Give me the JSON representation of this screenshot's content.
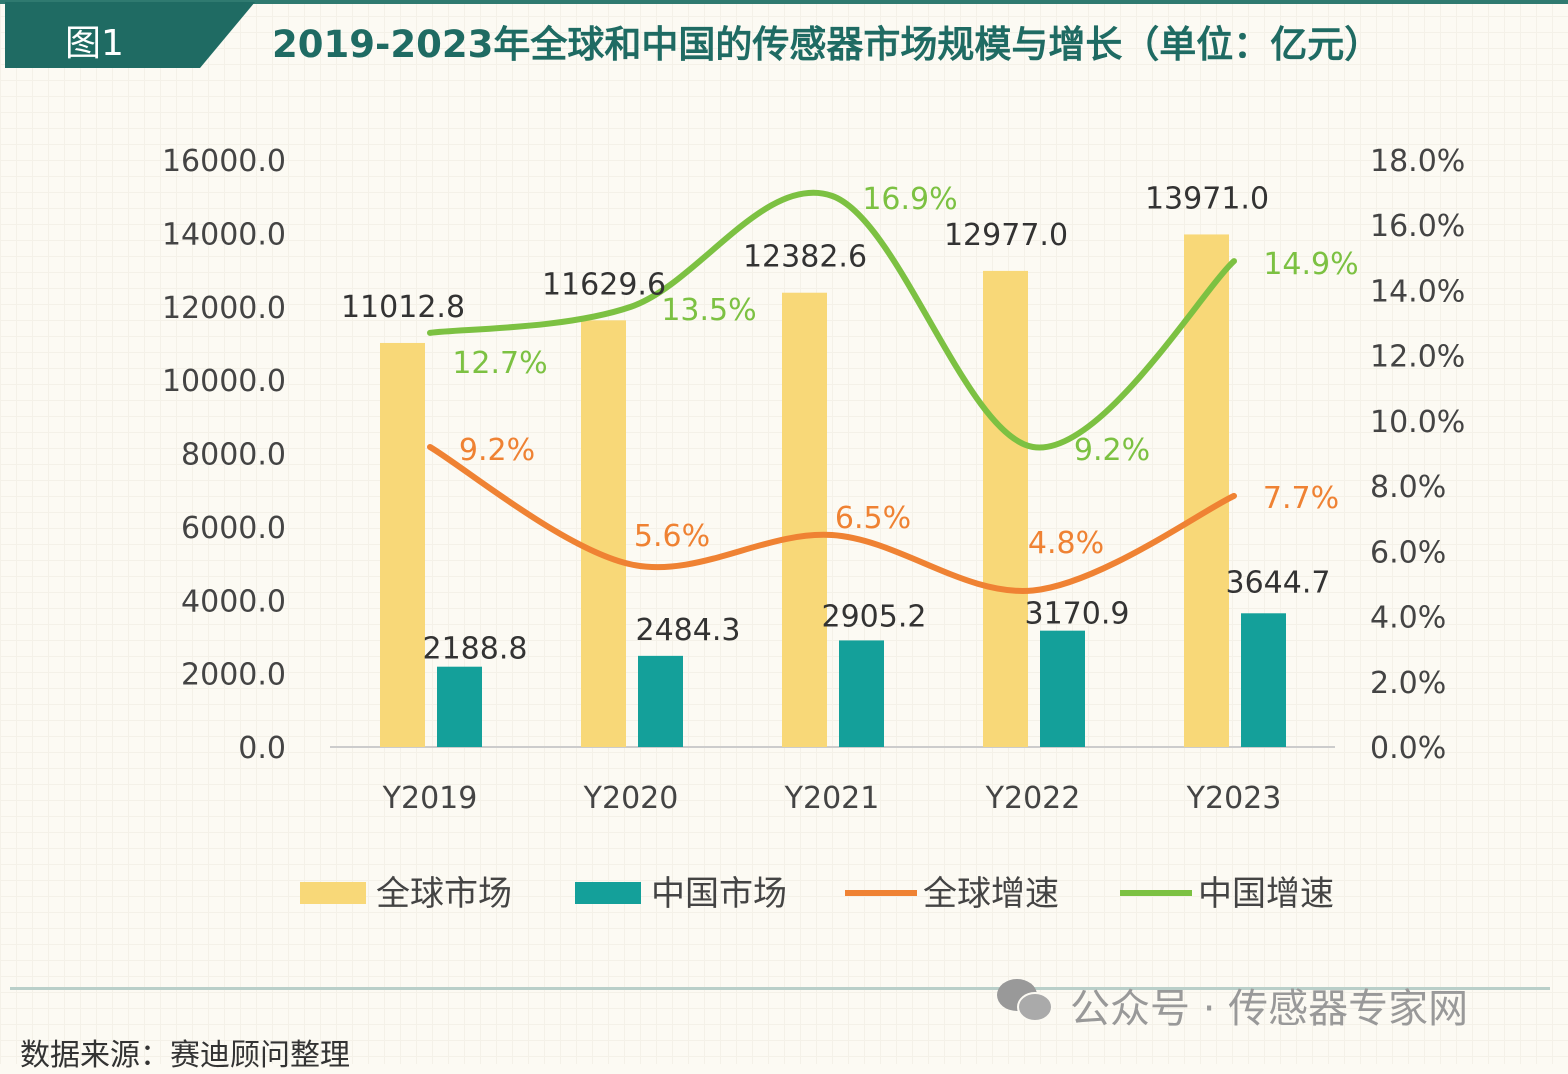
{
  "header": {
    "badge": "图1",
    "title": "2019-2023年全球和中国的传感器市场规模与增长（单位：亿元）"
  },
  "chart_data": {
    "type": "bar+line",
    "title": "2019-2023年全球和中国的传感器市场规模与增长（单位：亿元）",
    "categories": [
      "Y2019",
      "Y2020",
      "Y2021",
      "Y2022",
      "Y2023"
    ],
    "left_axis": {
      "range": [
        0,
        16000
      ],
      "ticks": [
        "0.0",
        "2000.0",
        "4000.0",
        "6000.0",
        "8000.0",
        "10000.0",
        "12000.0",
        "14000.0",
        "16000.0"
      ]
    },
    "right_axis": {
      "range": [
        0,
        18
      ],
      "unit": "%",
      "ticks": [
        "0.0%",
        "2.0%",
        "4.0%",
        "6.0%",
        "8.0%",
        "10.0%",
        "12.0%",
        "14.0%",
        "16.0%",
        "18.0%"
      ]
    },
    "series": [
      {
        "name": "全球市场",
        "kind": "bar",
        "axis": "left",
        "color": "#f8d878",
        "values": [
          11012.8,
          11629.6,
          12382.6,
          12977.0,
          13971.0
        ],
        "labels": [
          "11012.8",
          "11629.6",
          "12382.6",
          "12977.0",
          "13971.0"
        ]
      },
      {
        "name": "中国市场",
        "kind": "bar",
        "axis": "left",
        "color": "#14a09a",
        "values": [
          2188.8,
          2484.3,
          2905.2,
          3170.9,
          3644.7
        ],
        "labels": [
          "2188.8",
          "2484.3",
          "2905.2",
          "3170.9",
          "3644.7"
        ]
      },
      {
        "name": "全球增速",
        "kind": "line",
        "axis": "right",
        "color": "#ef8233",
        "values": [
          9.2,
          5.6,
          6.5,
          4.8,
          7.7
        ],
        "labels": [
          "9.2%",
          "5.6%",
          "6.5%",
          "4.8%",
          "7.7%"
        ]
      },
      {
        "name": "中国增速",
        "kind": "line",
        "axis": "right",
        "color": "#7cc142",
        "values": [
          12.7,
          13.5,
          16.9,
          9.2,
          14.9
        ],
        "labels": [
          "12.7%",
          "13.5%",
          "16.9%",
          "9.2%",
          "14.9%"
        ]
      }
    ],
    "legend_position": "bottom",
    "grid": false
  },
  "footer": {
    "watermark": "公众号 · 传感器专家网",
    "source": "数据来源：赛迪顾问整理"
  }
}
